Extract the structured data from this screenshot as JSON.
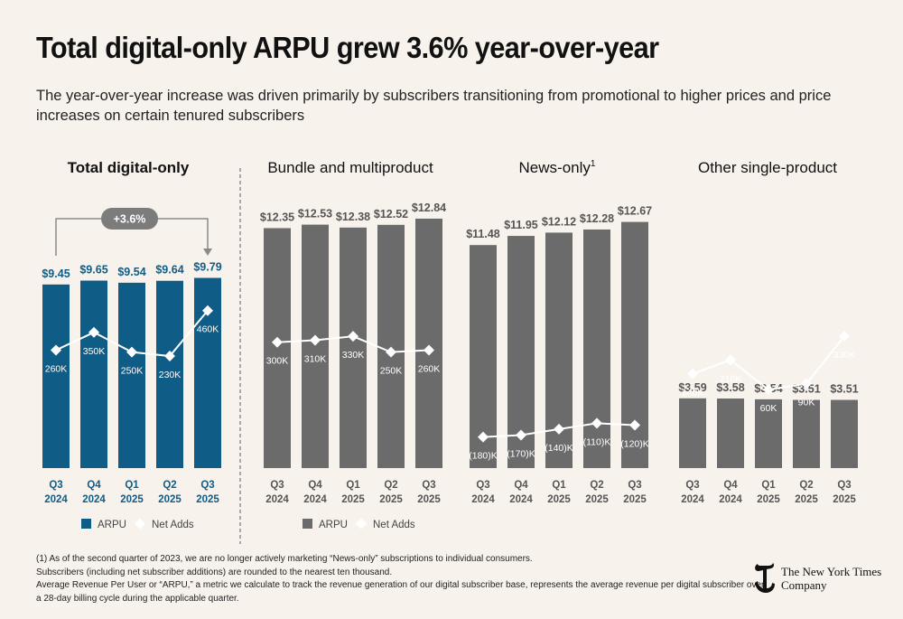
{
  "title": "Total digital-only ARPU grew 3.6% year-over-year",
  "subtitle": "The year-over-year increase was driven primarily by subscribers transitioning from promotional to higher prices and price increases on certain tenured subscribers",
  "colors": {
    "blue": "#0f5c87",
    "gray": "#6b6b6b",
    "line": "#ffffff",
    "background": "#f7f2ec"
  },
  "growth_badge": "+3.6%",
  "chart_data": [
    {
      "type": "bar",
      "title": "Total digital-only",
      "categories": [
        "Q3 2024",
        "Q4 2024",
        "Q1 2025",
        "Q2 2025",
        "Q3 2025"
      ],
      "series": [
        {
          "name": "ARPU",
          "values": [
            9.45,
            9.65,
            9.54,
            9.64,
            9.79
          ],
          "labels": [
            "$9.45",
            "$9.65",
            "$9.54",
            "$9.64",
            "$9.79"
          ]
        },
        {
          "name": "Net Adds",
          "type": "line",
          "values": [
            260,
            350,
            250,
            230,
            460
          ],
          "labels": [
            "260K",
            "350K",
            "250K",
            "230K",
            "460K"
          ]
        }
      ],
      "legend": [
        "ARPU",
        "Net Adds"
      ],
      "color": "blue"
    },
    {
      "type": "bar",
      "title": "Bundle and multiproduct",
      "categories": [
        "Q3 2024",
        "Q4 2024",
        "Q1 2025",
        "Q2 2025",
        "Q3 2025"
      ],
      "series": [
        {
          "name": "ARPU",
          "values": [
            12.35,
            12.53,
            12.38,
            12.52,
            12.84
          ],
          "labels": [
            "$12.35",
            "$12.53",
            "$12.38",
            "$12.52",
            "$12.84"
          ]
        },
        {
          "name": "Net Adds",
          "type": "line",
          "values": [
            300,
            310,
            330,
            250,
            260
          ],
          "labels": [
            "300K",
            "310K",
            "330K",
            "250K",
            "260K"
          ]
        }
      ],
      "legend": [
        "ARPU",
        "Net Adds"
      ],
      "color": "gray"
    },
    {
      "type": "bar",
      "title": "News-only",
      "title_sup": "1",
      "categories": [
        "Q3 2024",
        "Q4 2024",
        "Q1 2025",
        "Q2 2025",
        "Q3 2025"
      ],
      "series": [
        {
          "name": "ARPU",
          "values": [
            11.48,
            11.95,
            12.12,
            12.28,
            12.67
          ],
          "labels": [
            "$11.48",
            "$11.95",
            "$12.12",
            "$12.28",
            "$12.67"
          ]
        },
        {
          "name": "Net Adds",
          "type": "line",
          "values": [
            -180,
            -170,
            -140,
            -110,
            -120
          ],
          "labels": [
            "(180)K",
            "(170)K",
            "(140)K",
            "(110)K",
            "(120)K"
          ]
        }
      ],
      "color": "gray"
    },
    {
      "type": "bar",
      "title": "Other single-product",
      "categories": [
        "Q3 2024",
        "Q4 2024",
        "Q1 2025",
        "Q2 2025",
        "Q3 2025"
      ],
      "series": [
        {
          "name": "ARPU",
          "values": [
            3.59,
            3.58,
            3.54,
            3.51,
            3.51
          ],
          "labels": [
            "$3.59",
            "$3.58",
            "$3.54",
            "$3.51",
            "$3.51"
          ]
        },
        {
          "name": "Net Adds",
          "type": "line",
          "values": [
            140,
            210,
            60,
            90,
            330
          ],
          "labels": [
            "140K",
            "210K",
            "60K",
            "90K",
            "330K"
          ]
        }
      ],
      "color": "gray"
    }
  ],
  "footnotes": [
    "(1) As of the second quarter of 2023, we are no longer actively marketing “News-only” subscriptions to individual consumers.",
    "Subscribers (including net subscriber additions) are rounded to the nearest ten thousand.",
    "Average Revenue Per User or “ARPU,” a metric we calculate to track the revenue generation of our digital subscriber base, represents the average revenue per digital subscriber over",
    "a 28-day billing cycle during the applicable quarter."
  ],
  "brand": {
    "line1": "The New York Times",
    "line2": "Company",
    "logo_icon": "nyt-t-logo-icon"
  }
}
